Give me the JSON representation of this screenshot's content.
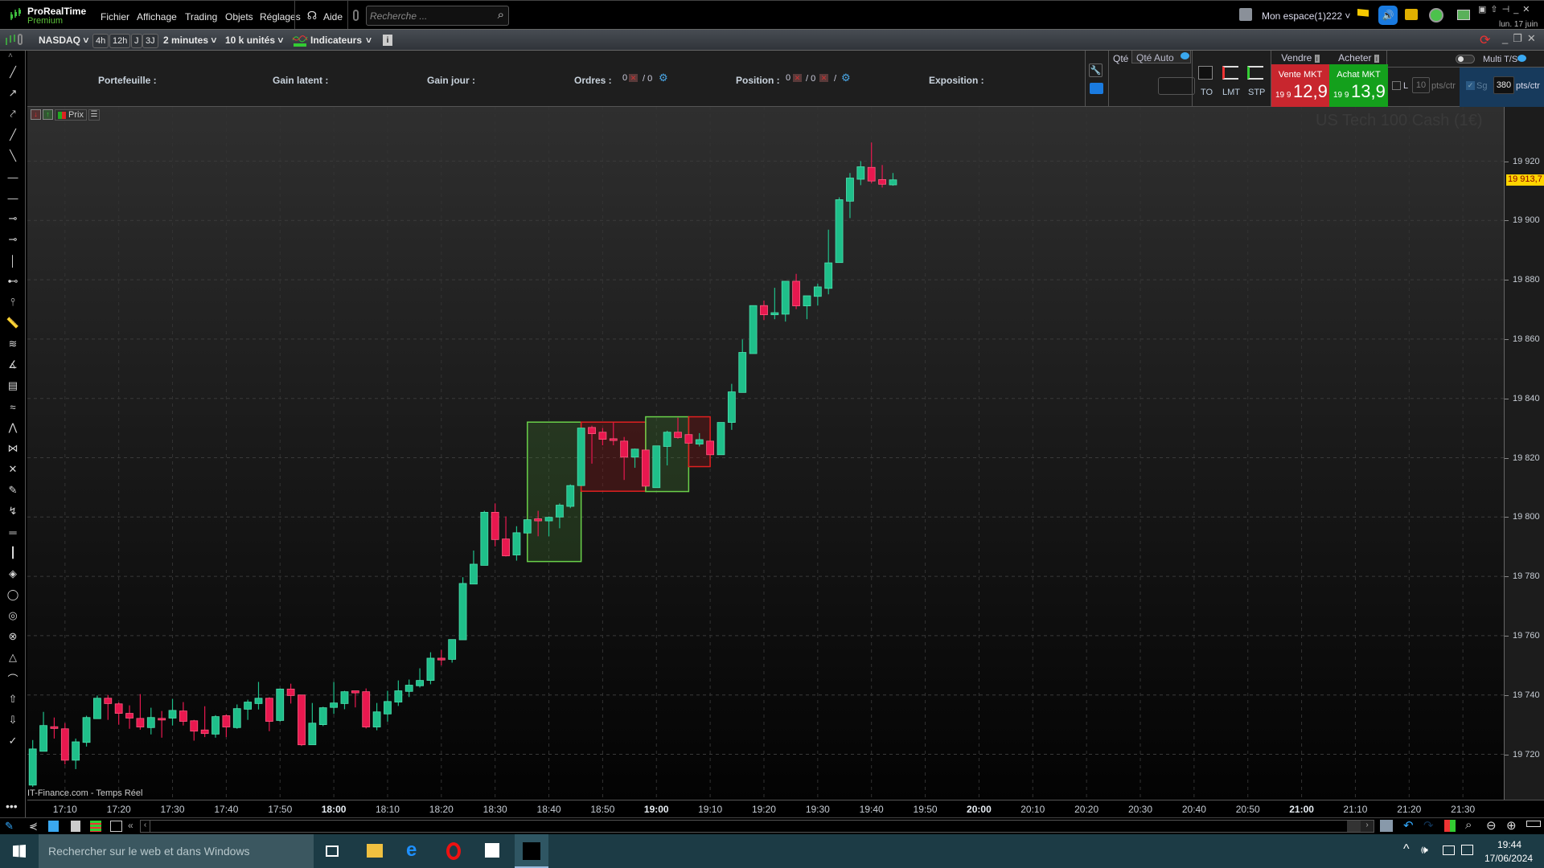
{
  "app": {
    "name": "ProRealTime",
    "edition": "Premium",
    "menus": [
      "Fichier",
      "Affichage",
      "Trading",
      "Objets",
      "Réglages"
    ],
    "help": "Aide",
    "search_placeholder": "Recherche ...",
    "workspace": "Mon espace(1)222",
    "date_short": "lun. 17 juin"
  },
  "toolbar": {
    "market": "NASDAQ",
    "periods": [
      "4h",
      "12h",
      "J",
      "3J"
    ],
    "timeframe": "2 minutes",
    "units": "10 k unités",
    "indicators": "Indicateurs"
  },
  "orderbar": {
    "portefeuille": "Portefeuille :",
    "gain_latent": "Gain latent :",
    "gain_jour": "Gain jour :",
    "ordres": "Ordres :",
    "ordres_v1": "0",
    "ordres_v2": "/ 0",
    "position": "Position :",
    "position_v1": "0",
    "position_v2": "/ 0",
    "position_sep": "/",
    "exposition": "Exposition :"
  },
  "trade": {
    "qty_tab": "Qté",
    "qty_auto_tab": "Qté Auto",
    "to": "TO",
    "lmt": "LMT",
    "stp": "STP",
    "sell_header": "Vendre",
    "buy_header": "Acheter",
    "sell_label": "Vente MKT",
    "sell_prefix": "19 9",
    "sell_price": "12,9",
    "buy_label": "Achat MKT",
    "buy_prefix": "19 9",
    "buy_price": "13,9",
    "multi_ts": "Multi T/S",
    "l_label": "L",
    "l_value": "10",
    "l_unit": "pts/ctr",
    "sg_label": "Sg",
    "sg_value": "380",
    "sg_unit": "pts/ctr",
    "sell_color": "#c8262e",
    "buy_color": "#14a01c"
  },
  "chart_toolbar": {
    "price_label": "Prix"
  },
  "chart_data": {
    "type": "candlestick",
    "title": "US Tech 100 Cash (1€)",
    "source": "IT-Finance.com - Temps Réel",
    "last_price": "19 913,7",
    "ylim": [
      19700,
      19935
    ],
    "y_ticks": [
      "19 720",
      "19 740",
      "19 760",
      "19 780",
      "19 800",
      "19 820",
      "19 840",
      "19 860",
      "19 880",
      "19 900",
      "19 920"
    ],
    "y_tick_values": [
      19720,
      19740,
      19760,
      19780,
      19800,
      19820,
      19840,
      19860,
      19880,
      19900,
      19920
    ],
    "x_ticks": [
      "17:10",
      "17:20",
      "17:30",
      "17:40",
      "17:50",
      "18:00",
      "18:10",
      "18:20",
      "18:30",
      "18:40",
      "18:50",
      "19:00",
      "19:10",
      "19:20",
      "19:30",
      "19:40",
      "19:50",
      "20:00",
      "20:10",
      "20:20",
      "20:30",
      "20:40",
      "20:50",
      "21:00",
      "21:10",
      "21:20",
      "21:30"
    ],
    "x_ticks_bold": [
      "18:00",
      "19:00",
      "20:00",
      "21:00"
    ],
    "grid": true,
    "up_color": "#1fbf8a",
    "down_color": "#e8184f",
    "columns": [
      "time",
      "open",
      "high",
      "low",
      "close"
    ],
    "candles": [
      [
        "17:04",
        19709.6,
        19724.8,
        19709.0,
        19721.8
      ],
      [
        "17:06",
        19721.0,
        19734.3,
        19721.0,
        19729.7
      ],
      [
        "17:08",
        19729.3,
        19732.4,
        19725.3,
        19728.7
      ],
      [
        "17:10",
        19728.6,
        19730.5,
        19716.6,
        19718.0
      ],
      [
        "17:12",
        19718.0,
        19725.3,
        19715.0,
        19724.2
      ],
      [
        "17:14",
        19724.0,
        19733.0,
        19722.6,
        19732.4
      ],
      [
        "17:16",
        19732.0,
        19739.8,
        19732.0,
        19738.9
      ],
      [
        "17:18",
        19738.9,
        19740.0,
        19731.6,
        19737.1
      ],
      [
        "17:20",
        19737.0,
        19737.5,
        19730.0,
        19733.8
      ],
      [
        "17:22",
        19733.8,
        19736.5,
        19728.6,
        19732.2
      ],
      [
        "17:24",
        19732.1,
        19740.3,
        19728.3,
        19729.2
      ],
      [
        "17:26",
        19729.0,
        19735.7,
        19726.7,
        19732.4
      ],
      [
        "17:28",
        19732.1,
        19734.6,
        19725.6,
        19731.7
      ],
      [
        "17:30",
        19732.2,
        19738.7,
        19729.7,
        19734.8
      ],
      [
        "17:32",
        19734.6,
        19737.6,
        19729.7,
        19731.1
      ],
      [
        "17:34",
        19731.3,
        19731.6,
        19724.6,
        19727.8
      ],
      [
        "17:36",
        19728.2,
        19736.2,
        19725.8,
        19727.0
      ],
      [
        "17:38",
        19726.8,
        19733.2,
        19725.6,
        19732.7
      ],
      [
        "17:40",
        19733.0,
        19733.5,
        19725.8,
        19729.2
      ],
      [
        "17:42",
        19729.0,
        19736.8,
        19728.6,
        19735.4
      ],
      [
        "17:44",
        19735.2,
        19738.4,
        19731.6,
        19737.6
      ],
      [
        "17:46",
        19737.1,
        19744.4,
        19735.1,
        19738.9
      ],
      [
        "17:48",
        19738.9,
        19739.2,
        19727.8,
        19731.1
      ],
      [
        "17:50",
        19731.4,
        19742.2,
        19731.0,
        19742.0
      ],
      [
        "17:52",
        19742.0,
        19743.8,
        19737.1,
        19739.8
      ],
      [
        "17:54",
        19740.0,
        19740.0,
        19722.8,
        19723.2
      ],
      [
        "17:56",
        19723.2,
        19737.3,
        19723.2,
        19730.5
      ],
      [
        "17:58",
        19730.0,
        19736.0,
        19729.5,
        19735.7
      ],
      [
        "18:00",
        19735.8,
        19744.4,
        19733.6,
        19737.3
      ],
      [
        "18:02",
        19737.1,
        19741.4,
        19735.2,
        19741.1
      ],
      [
        "18:04",
        19741.4,
        19741.4,
        19735.8,
        19740.7
      ],
      [
        "18:06",
        19741.1,
        19742.2,
        19728.7,
        19729.2
      ],
      [
        "18:08",
        19729.2,
        19737.3,
        19728.1,
        19734.3
      ],
      [
        "18:10",
        19733.6,
        19741.4,
        19731.0,
        19737.8
      ],
      [
        "18:12",
        19737.6,
        19744.9,
        19736.3,
        19741.4
      ],
      [
        "18:14",
        19741.2,
        19745.2,
        19739.3,
        19743.3
      ],
      [
        "18:16",
        19743.1,
        19749.0,
        19742.5,
        19744.9
      ],
      [
        "18:18",
        19744.9,
        19754.4,
        19743.6,
        19752.4
      ],
      [
        "18:20",
        19752.4,
        19755.2,
        19750.0,
        19751.8
      ],
      [
        "18:22",
        19752.0,
        19758.7,
        19750.9,
        19758.7
      ],
      [
        "18:24",
        19758.6,
        19779.7,
        19758.6,
        19777.6
      ],
      [
        "18:26",
        19777.4,
        19788.7,
        19777.4,
        19784.1
      ],
      [
        "18:28",
        19783.7,
        19802.1,
        19783.7,
        19801.6
      ],
      [
        "18:30",
        19801.6,
        19804.6,
        19790.1,
        19792.4
      ],
      [
        "18:32",
        19792.6,
        19800.2,
        19786.7,
        19786.9
      ],
      [
        "18:34",
        19787.2,
        19796.9,
        19785.3,
        19794.7
      ],
      [
        "18:36",
        19794.6,
        19799.1,
        19794.6,
        19799.1
      ],
      [
        "18:38",
        19799.4,
        19802.1,
        19793.5,
        19798.7
      ],
      [
        "18:40",
        19798.7,
        19800.2,
        19793.5,
        19799.9
      ],
      [
        "18:42",
        19800.0,
        19804.6,
        19796.2,
        19804.0
      ],
      [
        "18:44",
        19803.6,
        19811.0,
        19803.0,
        19810.6
      ],
      [
        "18:46",
        19810.6,
        19830.0,
        19810.6,
        19830.0
      ],
      [
        "18:48",
        19830.2,
        19830.8,
        19818.0,
        19828.1
      ],
      [
        "18:50",
        19828.6,
        19830.0,
        19824.2,
        19826.2
      ],
      [
        "18:52",
        19826.4,
        19831.9,
        19824.2,
        19825.8
      ],
      [
        "18:54",
        19825.6,
        19827.0,
        19812.5,
        19820.2
      ],
      [
        "18:56",
        19820.2,
        19823.1,
        19816.6,
        19822.9
      ],
      [
        "18:58",
        19822.6,
        19822.6,
        19810.4,
        19810.4
      ],
      [
        "19:00",
        19809.9,
        19824.0,
        19809.9,
        19824.0
      ],
      [
        "19:02",
        19823.8,
        19829.1,
        19817.4,
        19828.6
      ],
      [
        "19:04",
        19828.6,
        19833.5,
        19826.4,
        19826.8
      ],
      [
        "19:06",
        19827.8,
        19827.8,
        19824.9,
        19824.9
      ],
      [
        "19:08",
        19824.6,
        19828.3,
        19823.8,
        19826.1
      ],
      [
        "19:10",
        19825.6,
        19825.6,
        19821.0,
        19821.0
      ],
      [
        "19:12",
        19821.0,
        19831.9,
        19821.0,
        19831.9
      ],
      [
        "19:14",
        19831.9,
        19844.9,
        19829.4,
        19842.2
      ],
      [
        "19:16",
        19842.0,
        19859.9,
        19842.0,
        19855.5
      ],
      [
        "19:18",
        19855.1,
        19871.3,
        19855.1,
        19871.3
      ],
      [
        "19:20",
        19871.3,
        19873.0,
        19866.4,
        19868.2
      ],
      [
        "19:22",
        19868.2,
        19877.3,
        19866.7,
        19868.9
      ],
      [
        "19:24",
        19868.4,
        19879.5,
        19865.9,
        19879.5
      ],
      [
        "19:26",
        19879.5,
        19882.0,
        19870.1,
        19871.2
      ],
      [
        "19:28",
        19871.2,
        19874.6,
        19866.7,
        19874.6
      ],
      [
        "19:30",
        19874.4,
        19878.7,
        19871.3,
        19877.6
      ],
      [
        "19:32",
        19877.1,
        19896.9,
        19875.1,
        19885.7
      ],
      [
        "19:34",
        19885.8,
        19907.8,
        19885.8,
        19907.0
      ],
      [
        "19:36",
        19906.5,
        19916.0,
        19900.8,
        19914.3
      ],
      [
        "19:38",
        19913.9,
        19920.0,
        19911.9,
        19918.1
      ],
      [
        "19:40",
        19917.9,
        19926.3,
        19912.5,
        19913.3
      ],
      [
        "19:42",
        19913.8,
        19918.7,
        19911.1,
        19912.2
      ],
      [
        "19:44",
        19912.0,
        19916.0,
        19911.7,
        19913.7
      ]
    ],
    "boxes": [
      {
        "kind": "bullish",
        "from": "18:36",
        "to": "18:46",
        "high": 19832,
        "low": 19785
      },
      {
        "kind": "bearish",
        "from": "18:46",
        "to": "18:58",
        "high": 19832,
        "low": 19808.7
      },
      {
        "kind": "bullish",
        "from": "18:58",
        "to": "19:06",
        "high": 19833.8,
        "low": 19808.6
      },
      {
        "kind": "bearish",
        "from": "19:06",
        "to": "19:10",
        "high": 19833.8,
        "low": 19817
      }
    ]
  },
  "taskbar": {
    "search_placeholder": "Rechercher sur le web et dans Windows",
    "time": "19:44",
    "date": "17/06/2024"
  }
}
